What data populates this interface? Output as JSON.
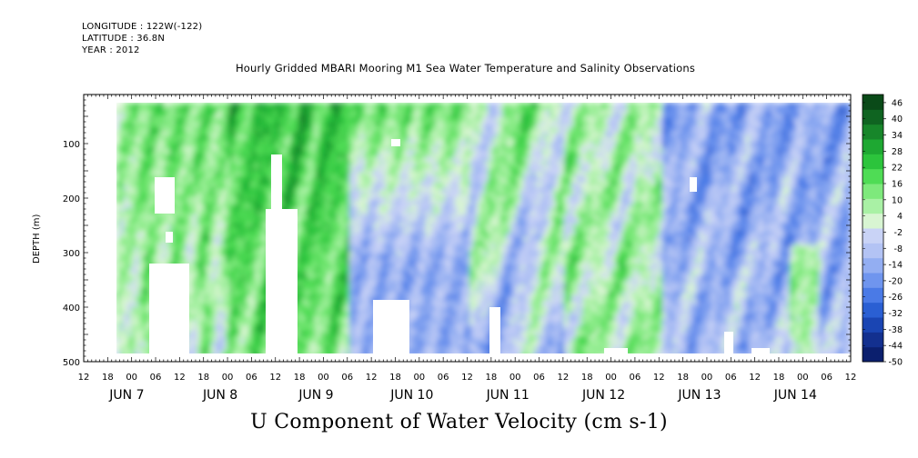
{
  "header": {
    "longitude": "LONGITUDE : 122W(-122)",
    "latitude": "LATITUDE : 36.8N",
    "year": "YEAR : 2012"
  },
  "title": "Hourly Gridded MBARI Mooring M1 Sea Water Temperature and Salinity Observations",
  "bottom_title": "U Component of Water Velocity (cm s-1)",
  "chart_data": {
    "type": "heatmap",
    "ylabel": "DEPTH (m)",
    "yaxis": {
      "ticks": [
        100,
        200,
        300,
        400,
        500
      ],
      "range": [
        10,
        500
      ],
      "inverted": true
    },
    "xaxis": {
      "hour_ticks": [
        "12",
        "18",
        "00",
        "06",
        "12",
        "18",
        "00",
        "06",
        "12",
        "18",
        "00",
        "06",
        "12",
        "18",
        "00",
        "06",
        "12",
        "18",
        "00",
        "06",
        "12",
        "18",
        "00",
        "06",
        "12",
        "18",
        "00",
        "06",
        "12",
        "18",
        "00",
        "06",
        "12"
      ],
      "day_labels": [
        "JUN  7",
        "JUN  8",
        "JUN  9",
        "JUN 10",
        "JUN 11",
        "JUN 12",
        "JUN 13",
        "JUN 14"
      ]
    },
    "colorbar": {
      "labels": [
        "46",
        "40",
        "34",
        "28",
        "22",
        "16",
        "10",
        "4",
        "-2",
        "-8",
        "-14",
        "-20",
        "-26",
        "-32",
        "-38",
        "-44",
        "-50"
      ],
      "min": -50,
      "max": 49,
      "colors": [
        "#0b1f6e",
        "#13308f",
        "#1a45b3",
        "#2a5fd3",
        "#4a7ae6",
        "#6f95ee",
        "#93aef2",
        "#b3c3f4",
        "#c9d3f6",
        "#d8f5d2",
        "#a9f1a5",
        "#7ee97c",
        "#4fdc55",
        "#2cc43c",
        "#1ea832",
        "#17862a",
        "#0f6421",
        "#0a4a18"
      ],
      "description": "blue = negative (westward), green = positive (eastward)"
    },
    "field_summary": [
      {
        "period": "JUN 7 12 - JUN 8 00",
        "surface": "green ~10-20",
        "deep": "green/blue mix ~ -5 to 15"
      },
      {
        "period": "JUN 8 - JUN 9",
        "surface": "green ~10-25",
        "deep": "alternating green and light blue ~ -10 to 15"
      },
      {
        "period": "JUN 9 - JUN 10 06",
        "surface": "strong green ~20-30",
        "deep": "green ~10-20"
      },
      {
        "period": "JUN 10 06 - JUN 11 12",
        "surface": "green ~10-25",
        "deep": "blue ~ -10 to -20"
      },
      {
        "period": "JUN 11 12 - JUN 12 18",
        "surface": "green/light ~0-20",
        "deep": "green ~10-20 with blue patches"
      },
      {
        "period": "JUN 12 18 - JUN 14 12",
        "surface": "blue ~ -10 to -25",
        "deep": "blue ~ -10 to -20 with small green patches"
      }
    ]
  }
}
